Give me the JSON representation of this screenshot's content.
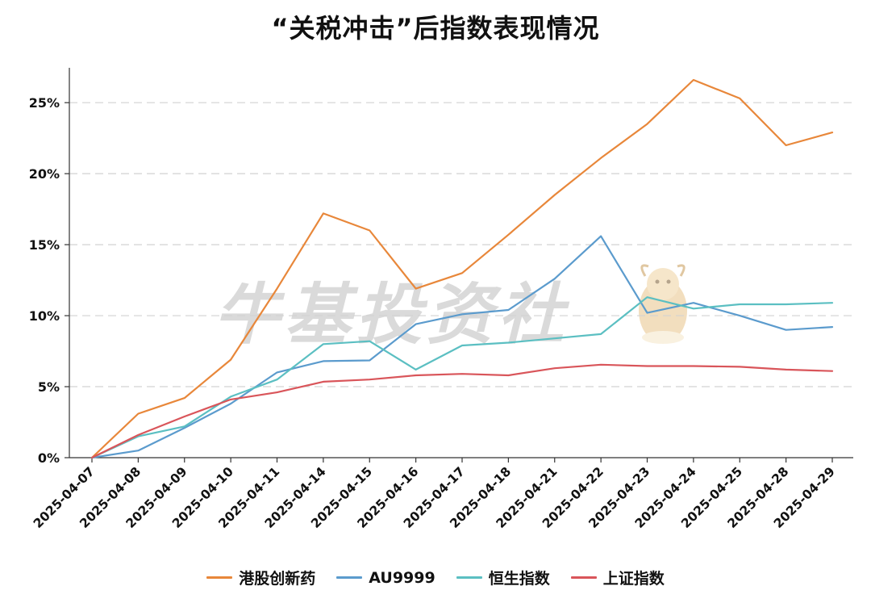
{
  "chart_data": {
    "type": "line",
    "title": "“关税冲击”后指数表现情况",
    "watermark": "牛基投资社",
    "x": [
      "2025-04-07",
      "2025-04-08",
      "2025-04-09",
      "2025-04-10",
      "2025-04-11",
      "2025-04-14",
      "2025-04-15",
      "2025-04-16",
      "2025-04-17",
      "2025-04-18",
      "2025-04-21",
      "2025-04-22",
      "2025-04-23",
      "2025-04-24",
      "2025-04-25",
      "2025-04-28",
      "2025-04-29"
    ],
    "ylim": [
      0,
      27
    ],
    "yticks": [
      0,
      5,
      10,
      15,
      20,
      25
    ],
    "ytick_labels": [
      "0%",
      "5%",
      "10%",
      "15%",
      "20%",
      "25%"
    ],
    "grid": "horizontal dashed",
    "legend_position": "bottom",
    "series": [
      {
        "name": "港股创新药",
        "color": "#E8873A",
        "values": [
          0,
          3.1,
          4.2,
          6.9,
          11.9,
          17.2,
          16.0,
          11.9,
          13.0,
          15.7,
          18.5,
          21.1,
          23.5,
          26.6,
          25.3,
          22.0,
          22.9
        ]
      },
      {
        "name": "AU9999",
        "color": "#5B9BCD",
        "values": [
          0,
          0.5,
          2.1,
          3.8,
          6.0,
          6.8,
          6.85,
          9.4,
          10.1,
          10.4,
          12.6,
          15.6,
          10.2,
          10.9,
          10.0,
          9.0,
          9.2
        ]
      },
      {
        "name": "恒生指数",
        "color": "#5BBFC2",
        "values": [
          0,
          1.5,
          2.2,
          4.3,
          5.5,
          8.0,
          8.2,
          6.2,
          7.9,
          8.1,
          8.4,
          8.7,
          11.3,
          10.5,
          10.8,
          10.8,
          10.9
        ]
      },
      {
        "name": "上证指数",
        "color": "#D9555A",
        "values": [
          0,
          1.6,
          2.9,
          4.1,
          4.6,
          5.35,
          5.5,
          5.8,
          5.9,
          5.8,
          6.3,
          6.55,
          6.45,
          6.45,
          6.4,
          6.2,
          6.1
        ]
      }
    ]
  }
}
